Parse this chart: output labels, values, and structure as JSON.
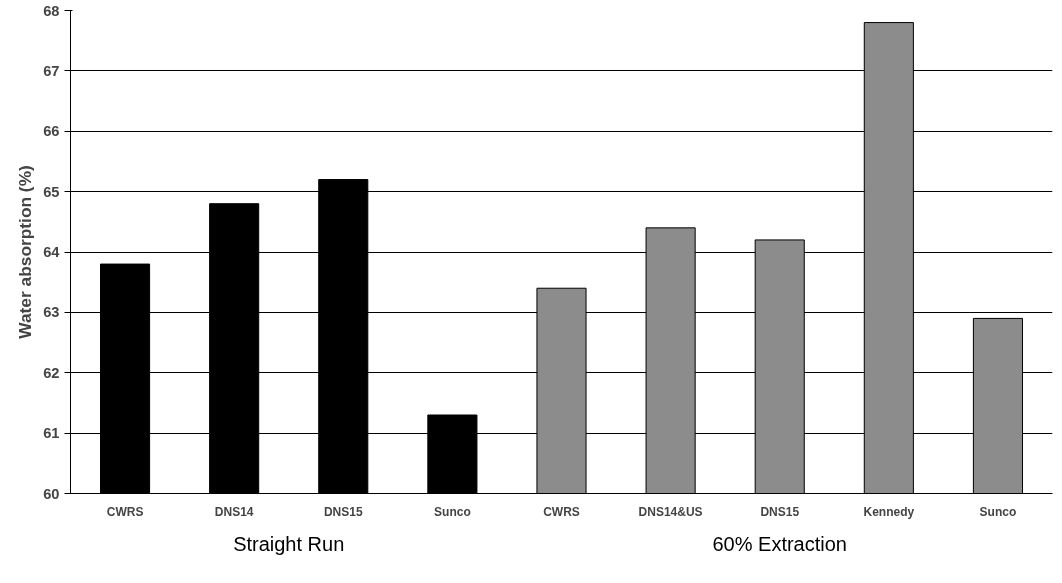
{
  "chart_data": {
    "type": "bar",
    "ylabel": "Water absorption (%)",
    "categories": [
      "CWRS",
      "DNS14",
      "DNS15",
      "Sunco",
      "CWRS",
      "DNS14&US",
      "DNS15",
      "Kennedy",
      "Sunco"
    ],
    "values": [
      63.8,
      64.8,
      65.2,
      61.3,
      63.4,
      64.4,
      64.2,
      67.8,
      62.9
    ],
    "colors": [
      "#000000",
      "#000000",
      "#000000",
      "#000000",
      "#8c8c8c",
      "#8c8c8c",
      "#8c8c8c",
      "#8c8c8c",
      "#8c8c8c"
    ],
    "ylim": [
      60,
      68
    ],
    "yticks": [
      60,
      61,
      62,
      63,
      64,
      65,
      66,
      67,
      68
    ],
    "grid": "y",
    "annotations": [
      "Straight Run",
      "60% Extraction"
    ]
  }
}
